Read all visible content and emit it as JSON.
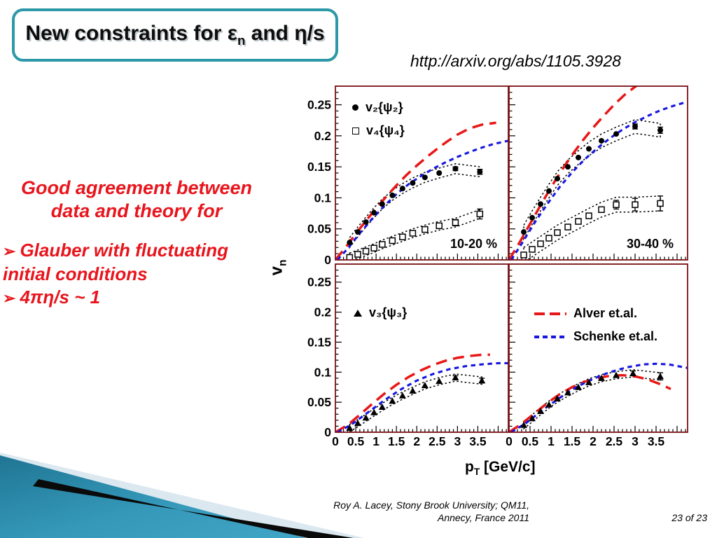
{
  "slide": {
    "title": {
      "part1": "New constraints for ε",
      "sub": "n",
      "part2": " and η/s"
    },
    "arxiv_link": "http://arxiv.org/abs/1105.3928",
    "message": {
      "heading_line1": "Good agreement between",
      "heading_line2": "data and theory for",
      "bullet_glyph": "➢",
      "bullet1_line1": "Glauber with fluctuating",
      "bullet1_line2": "initial conditions",
      "bullet2": "4πη/s ~ 1",
      "accent_color": "#e8151d"
    },
    "footer": {
      "credit_line1": "Roy A. Lacey, Stony Brook University; QM11,",
      "credit_line2": "Annecy, France 2011",
      "page": "23 of 23"
    }
  },
  "colors": {
    "title_border_teal": "#2d98a7",
    "panel_border_maroon": "#7a1014",
    "alver_red": "#e81717",
    "schenke_blue": "#1717e0",
    "decor_teal_dark": "#1f7593",
    "decor_teal_light": "#41a5c6",
    "decor_pale": "#dce8f0",
    "decor_black": "#0a0a0a"
  },
  "chart_data": {
    "type": "line",
    "title": "",
    "xlabel": {
      "base": "p",
      "sub": "T",
      "units": " [GeV/c]"
    },
    "ylabel": {
      "base": "v",
      "sub": "n"
    },
    "xlim": [
      0,
      4.25
    ],
    "ylim": [
      0,
      0.28
    ],
    "x_ticks": [
      0,
      0.5,
      1,
      1.5,
      2,
      2.5,
      3,
      3.5
    ],
    "x_ticklabels": [
      "0",
      "0.5",
      "1",
      "1.5",
      "2",
      "2.5",
      "3",
      "3.5"
    ],
    "y_ticks": [
      0,
      0.05,
      0.1,
      0.15,
      0.2,
      0.25
    ],
    "y_ticklabels": [
      "0",
      "0.05",
      "0.1",
      "0.15",
      "0.2",
      "0.25"
    ],
    "grid": false,
    "theory_legend": [
      {
        "name": "Alver et.al.",
        "color": "#e81717",
        "dash": "long"
      },
      {
        "name": "Schenke et.al.",
        "color": "#1717e0",
        "dash": "short"
      }
    ],
    "panels": [
      {
        "id": "top-left",
        "region_label": "10-20 %",
        "legend": [
          {
            "marker": "circle-filled",
            "label": "v₂{ψ₂}"
          },
          {
            "marker": "square-open",
            "label": "v₄{ψ₄}"
          }
        ],
        "curves": [
          {
            "name": "Alver et.al.",
            "color": "#e81717",
            "dash": "long",
            "x": [
              0,
              0.25,
              0.5,
              0.75,
              1,
              1.25,
              1.5,
              1.75,
              2,
              2.25,
              2.5,
              2.75,
              3,
              3.3,
              3.6,
              3.95
            ],
            "y": [
              0,
              0.02,
              0.042,
              0.063,
              0.083,
              0.102,
              0.12,
              0.137,
              0.152,
              0.166,
              0.179,
              0.191,
              0.202,
              0.212,
              0.218,
              0.221
            ]
          },
          {
            "name": "Schenke et.al.",
            "color": "#1717e0",
            "dash": "short",
            "x": [
              0.05,
              0.3,
              0.6,
              0.9,
              1.2,
              1.5,
              1.8,
              2.1,
              2.4,
              2.7,
              3,
              3.3,
              3.6,
              3.9,
              4.25
            ],
            "y": [
              0,
              0.018,
              0.043,
              0.066,
              0.087,
              0.106,
              0.122,
              0.135,
              0.147,
              0.157,
              0.166,
              0.174,
              0.181,
              0.187,
              0.192
            ]
          }
        ],
        "series": [
          {
            "name": "v2{psi2}",
            "marker": "circle",
            "x": [
              0.35,
              0.55,
              0.75,
              0.95,
              1.15,
              1.4,
              1.65,
              1.9,
              2.2,
              2.55,
              2.95,
              3.55
            ],
            "y": [
              0.028,
              0.045,
              0.061,
              0.076,
              0.09,
              0.104,
              0.115,
              0.124,
              0.133,
              0.14,
              0.147,
              0.142
            ],
            "band": 0.008,
            "err": [
              0,
              0,
              0,
              0,
              0,
              0,
              0,
              0,
              0,
              0,
              0.003,
              0.004
            ]
          },
          {
            "name": "v4{psi4}",
            "marker": "square",
            "x": [
              0.35,
              0.55,
              0.75,
              0.95,
              1.15,
              1.4,
              1.65,
              1.9,
              2.2,
              2.55,
              2.95,
              3.55
            ],
            "y": [
              0.004,
              0.009,
              0.014,
              0.019,
              0.025,
              0.031,
              0.037,
              0.043,
              0.049,
              0.055,
              0.06,
              0.074
            ],
            "band": 0.007,
            "err": [
              0,
              0,
              0,
              0,
              0,
              0,
              0,
              0,
              0,
              0.004,
              0.005,
              0.008
            ]
          }
        ]
      },
      {
        "id": "top-right",
        "region_label": "30-40 %",
        "legend": [],
        "curves": [
          {
            "name": "Alver et.al.",
            "color": "#e81717",
            "dash": "long",
            "x": [
              0,
              0.25,
              0.5,
              0.75,
              1,
              1.25,
              1.5,
              1.75,
              2,
              2.25,
              2.5,
              2.75,
              3,
              3.15
            ],
            "y": [
              0,
              0.028,
              0.058,
              0.088,
              0.117,
              0.144,
              0.169,
              0.192,
              0.213,
              0.232,
              0.25,
              0.266,
              0.279,
              0.286
            ]
          },
          {
            "name": "Schenke et.al.",
            "color": "#1717e0",
            "dash": "short",
            "x": [
              0.05,
              0.3,
              0.6,
              0.9,
              1.2,
              1.5,
              1.8,
              2.1,
              2.4,
              2.7,
              3,
              3.3,
              3.6,
              3.9,
              4.25
            ],
            "y": [
              0,
              0.026,
              0.059,
              0.089,
              0.117,
              0.141,
              0.162,
              0.18,
              0.196,
              0.21,
              0.222,
              0.232,
              0.241,
              0.248,
              0.255
            ]
          }
        ],
        "series": [
          {
            "name": "v2{psi2}",
            "marker": "circle",
            "x": [
              0.35,
              0.55,
              0.75,
              0.95,
              1.15,
              1.4,
              1.65,
              1.9,
              2.2,
              2.55,
              3,
              3.6
            ],
            "y": [
              0.045,
              0.068,
              0.09,
              0.111,
              0.131,
              0.15,
              0.165,
              0.179,
              0.192,
              0.203,
              0.215,
              0.209
            ],
            "band": 0.011,
            "err": [
              0,
              0,
              0,
              0,
              0,
              0,
              0,
              0,
              0,
              0,
              0.004,
              0.005
            ]
          },
          {
            "name": "v4{psi4}",
            "marker": "square",
            "x": [
              0.35,
              0.55,
              0.75,
              0.95,
              1.15,
              1.4,
              1.65,
              1.9,
              2.2,
              2.55,
              3,
              3.6
            ],
            "y": [
              0.008,
              0.017,
              0.026,
              0.035,
              0.044,
              0.053,
              0.062,
              0.071,
              0.081,
              0.089,
              0.089,
              0.091
            ],
            "band": 0.012,
            "err": [
              0,
              0,
              0,
              0,
              0,
              0,
              0,
              0,
              0,
              0.007,
              0.01,
              0.012
            ]
          }
        ]
      },
      {
        "id": "bottom-left",
        "region_label": "",
        "legend": [
          {
            "marker": "triangle-filled",
            "label": "v₃{ψ₃}"
          }
        ],
        "curves": [
          {
            "name": "Alver et.al.",
            "color": "#e81717",
            "dash": "long",
            "x": [
              0,
              0.3,
              0.6,
              0.9,
              1.2,
              1.5,
              1.8,
              2.1,
              2.4,
              2.7,
              3,
              3.3,
              3.6,
              3.8
            ],
            "y": [
              0,
              0.012,
              0.029,
              0.047,
              0.064,
              0.079,
              0.092,
              0.103,
              0.112,
              0.119,
              0.124,
              0.127,
              0.129,
              0.129
            ]
          },
          {
            "name": "Schenke et.al.",
            "color": "#1717e0",
            "dash": "short",
            "x": [
              0.05,
              0.4,
              0.8,
              1.2,
              1.6,
              2,
              2.4,
              2.8,
              3.2,
              3.6,
              4,
              4.25
            ],
            "y": [
              0,
              0.013,
              0.033,
              0.053,
              0.071,
              0.086,
              0.097,
              0.105,
              0.11,
              0.113,
              0.115,
              0.115
            ]
          }
        ],
        "series": [
          {
            "name": "v3{psi3}",
            "marker": "triangle",
            "x": [
              0.35,
              0.55,
              0.75,
              0.95,
              1.15,
              1.4,
              1.65,
              1.9,
              2.2,
              2.55,
              2.95,
              3.6
            ],
            "y": [
              0.007,
              0.015,
              0.024,
              0.033,
              0.042,
              0.052,
              0.061,
              0.069,
              0.078,
              0.085,
              0.091,
              0.086
            ],
            "band": 0.006,
            "err": [
              0,
              0,
              0,
              0,
              0,
              0,
              0,
              0,
              0,
              0,
              0.003,
              0.004
            ]
          }
        ]
      },
      {
        "id": "bottom-right",
        "region_label": "",
        "legend": [],
        "curves": [
          {
            "name": "Alver et.al.",
            "color": "#e81717",
            "dash": "long",
            "x": [
              0,
              0.3,
              0.6,
              0.9,
              1.2,
              1.5,
              1.8,
              2.1,
              2.4,
              2.7,
              3,
              3.3,
              3.6,
              3.85
            ],
            "y": [
              0,
              0.014,
              0.031,
              0.048,
              0.063,
              0.075,
              0.084,
              0.09,
              0.094,
              0.095,
              0.093,
              0.088,
              0.08,
              0.072
            ]
          },
          {
            "name": "Schenke et.al.",
            "color": "#1717e0",
            "dash": "short",
            "x": [
              0.05,
              0.4,
              0.8,
              1.2,
              1.6,
              2,
              2.4,
              2.8,
              3.2,
              3.5,
              3.8,
              4.1,
              4.25
            ],
            "y": [
              0,
              0.015,
              0.037,
              0.057,
              0.075,
              0.089,
              0.1,
              0.108,
              0.113,
              0.114,
              0.113,
              0.109,
              0.107
            ]
          }
        ],
        "series": [
          {
            "name": "v3{psi3}",
            "marker": "triangle",
            "x": [
              0.35,
              0.55,
              0.75,
              0.95,
              1.15,
              1.4,
              1.65,
              1.9,
              2.2,
              2.55,
              2.95,
              3.6
            ],
            "y": [
              0.012,
              0.023,
              0.035,
              0.046,
              0.056,
              0.066,
              0.075,
              0.083,
              0.09,
              0.095,
              0.098,
              0.093
            ],
            "band": 0.006,
            "err": [
              0,
              0,
              0,
              0,
              0,
              0,
              0,
              0,
              0,
              0,
              0.004,
              0.006
            ]
          }
        ]
      }
    ]
  }
}
